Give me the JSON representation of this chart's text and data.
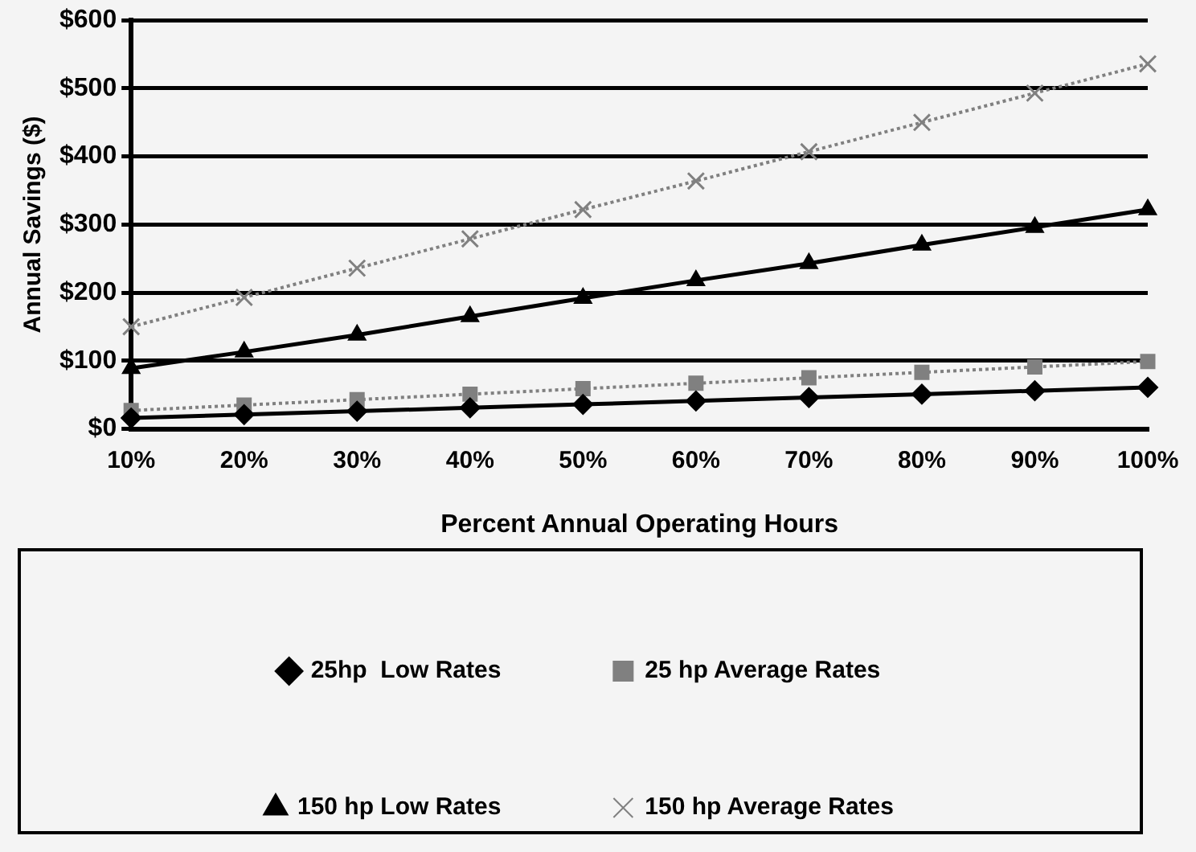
{
  "chart_data": {
    "type": "line",
    "xlabel": "Percent Annual Operating Hours",
    "ylabel": "Annual Savings ($)",
    "categories": [
      "10%",
      "20%",
      "30%",
      "40%",
      "50%",
      "60%",
      "70%",
      "80%",
      "90%",
      "100%"
    ],
    "series": [
      {
        "name": "25hp  Low Rates",
        "color": "#000000",
        "marker": "diamond",
        "line_style": "solid",
        "values": [
          16,
          21,
          26,
          31,
          36,
          41,
          46,
          51,
          56,
          61
        ]
      },
      {
        "name": "25 hp Average Rates",
        "color": "#808080",
        "marker": "square",
        "line_style": "dotted",
        "values": [
          27,
          35,
          43,
          51,
          59,
          67,
          75,
          83,
          91,
          99
        ]
      },
      {
        "name": "150 hp Low Rates",
        "color": "#000000",
        "marker": "triangle",
        "line_style": "solid",
        "values": [
          89,
          113,
          138,
          165,
          192,
          218,
          243,
          270,
          296,
          322
        ]
      },
      {
        "name": "150 hp Average Rates",
        "color": "#808080",
        "marker": "cross",
        "line_style": "dotted",
        "values": [
          150,
          193,
          236,
          279,
          322,
          364,
          407,
          450,
          493,
          536
        ]
      }
    ],
    "ylim": [
      0,
      600
    ],
    "yticks": [
      {
        "value": 0,
        "label": "$0"
      },
      {
        "value": 100,
        "label": "$100"
      },
      {
        "value": 200,
        "label": "$200"
      },
      {
        "value": 300,
        "label": "$300"
      },
      {
        "value": 400,
        "label": "$400"
      },
      {
        "value": 500,
        "label": "$500"
      },
      {
        "value": 600,
        "label": "$600"
      }
    ],
    "grid": "y",
    "legend": "bottom"
  }
}
